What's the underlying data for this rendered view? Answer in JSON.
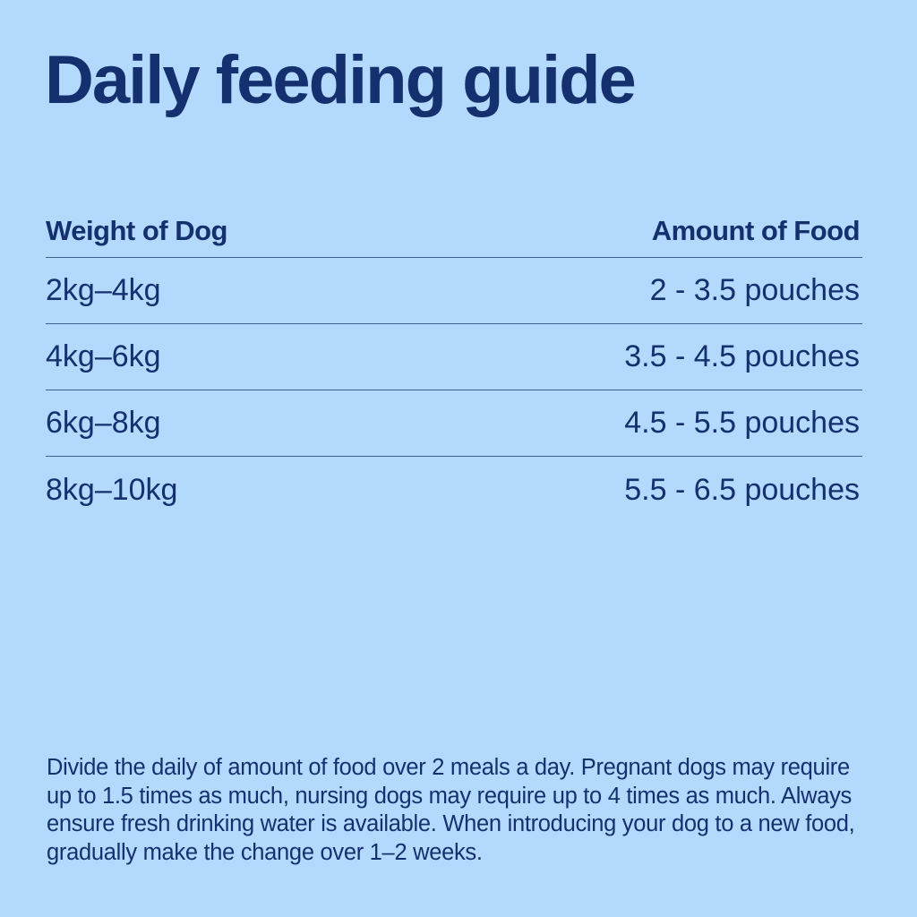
{
  "page": {
    "title": "Daily feeding guide",
    "background_color": "#b3d9fd",
    "text_color": "#15306e"
  },
  "table": {
    "headers": {
      "weight": "Weight of Dog",
      "amount": "Amount of Food"
    },
    "rows": [
      {
        "weight": "2kg–4kg",
        "amount": "2 - 3.5 pouches"
      },
      {
        "weight": "4kg–6kg",
        "amount": "3.5 - 4.5 pouches"
      },
      {
        "weight": "6kg–8kg",
        "amount": "4.5 - 5.5 pouches"
      },
      {
        "weight": "8kg–10kg",
        "amount": "5.5 - 6.5 pouches"
      }
    ]
  },
  "note": "Divide the daily of amount of food over 2 meals a day. Pregnant dogs may require up to 1.5 times as much, nursing dogs may require up to 4 times as much. Always ensure fresh drinking water is available. When introducing your dog to a new food, gradually make the change over 1–2 weeks."
}
